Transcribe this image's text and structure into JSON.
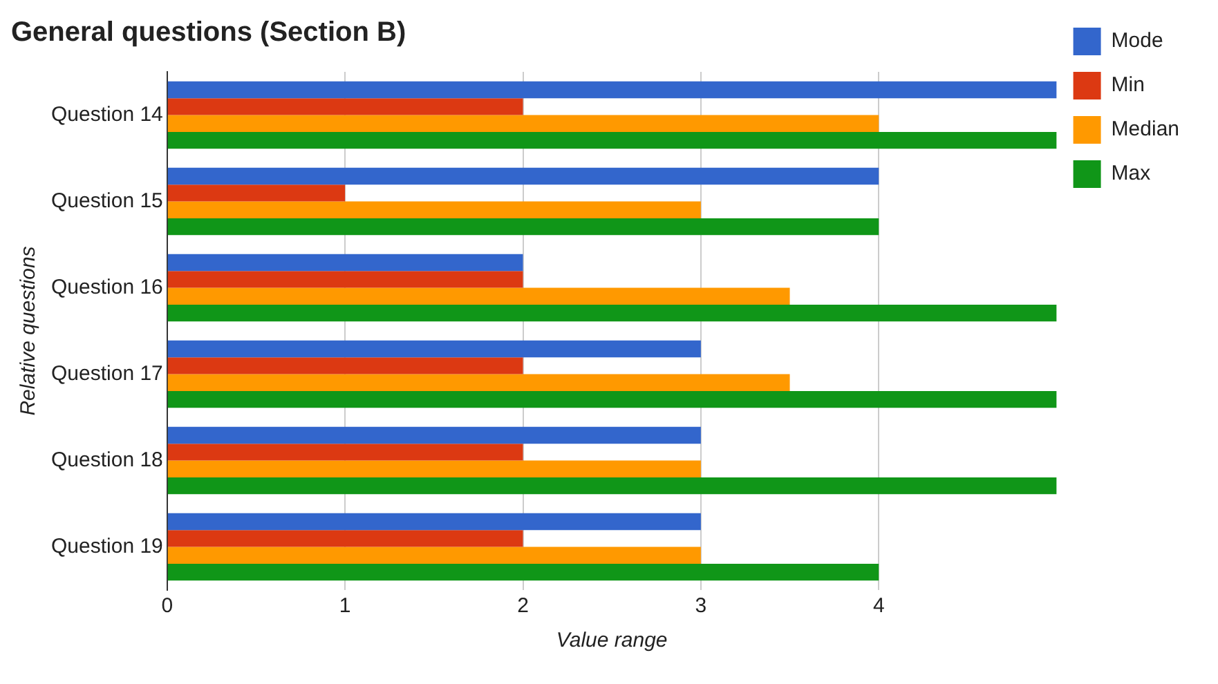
{
  "chart_data": {
    "type": "bar",
    "orientation": "horizontal",
    "title": "General questions (Section B)",
    "xlabel": "Value range",
    "ylabel": "Relative questions",
    "categories": [
      "Question 14",
      "Question 15",
      "Question 16",
      "Question 17",
      "Question 18",
      "Question 19"
    ],
    "series": [
      {
        "name": "Mode",
        "color": "#3366cc",
        "values": [
          5,
          4,
          2,
          3,
          3,
          3
        ]
      },
      {
        "name": "Min",
        "color": "#dc3912",
        "values": [
          2,
          1,
          2,
          2,
          2,
          2
        ]
      },
      {
        "name": "Median",
        "color": "#ff9900",
        "values": [
          4,
          3,
          3.5,
          3.5,
          3,
          3
        ]
      },
      {
        "name": "Max",
        "color": "#109618",
        "values": [
          5,
          4,
          5,
          5,
          5,
          4
        ]
      }
    ],
    "xlim": [
      0,
      5
    ],
    "xticks": [
      0,
      1,
      2,
      3,
      4
    ],
    "grid": "x",
    "legend": "top right"
  }
}
